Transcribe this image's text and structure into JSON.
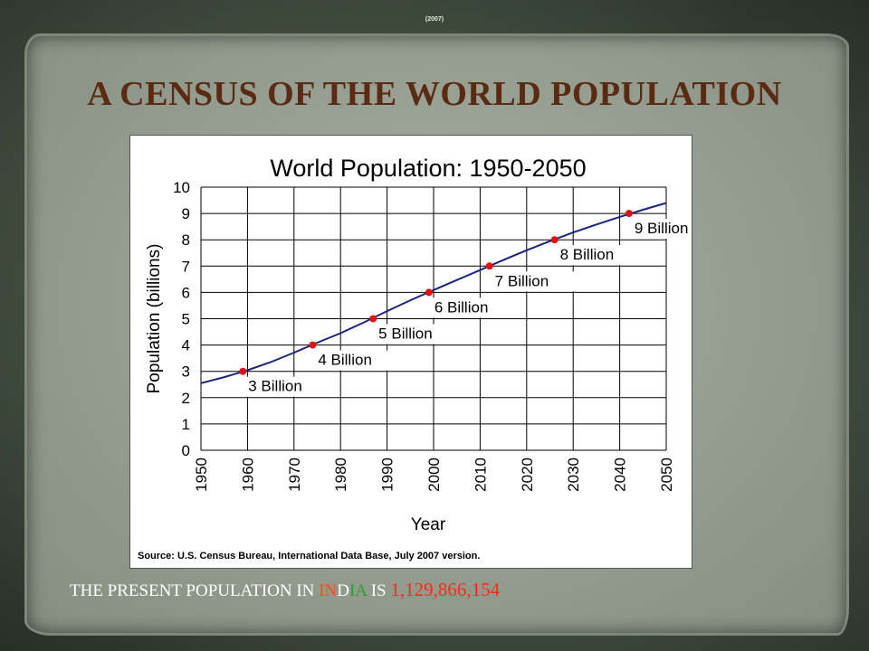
{
  "header": {
    "note_line1": "",
    "note_line2": "(2007)"
  },
  "slide": {
    "title": "A CENSUS OF THE WORLD POPULATION"
  },
  "footer": {
    "prefix": "THE PRESENT POPULATION IN ",
    "country_part1": "IN",
    "country_part2": "D",
    "country_part3": "IA",
    "middle": " IS ",
    "population": "1,129,866,154"
  },
  "colors": {
    "title": "#5a2a12",
    "line": "#1a237e",
    "milestone": "#e01010"
  },
  "chart_data": {
    "type": "line",
    "title": "World Population: 1950-2050",
    "xlabel": "Year",
    "ylabel": "Population (billions)",
    "source": "Source: U.S. Census Bureau, International Data Base, July 2007 version.",
    "xlim": [
      1950,
      2050
    ],
    "ylim": [
      0,
      10
    ],
    "x_ticks": [
      1950,
      1960,
      1970,
      1980,
      1990,
      2000,
      2010,
      2020,
      2030,
      2040,
      2050
    ],
    "y_ticks": [
      0,
      1,
      2,
      3,
      4,
      5,
      6,
      7,
      8,
      9,
      10
    ],
    "grid": true,
    "series": [
      {
        "x": [
          1950,
          1955,
          1960,
          1965,
          1970,
          1975,
          1980,
          1985,
          1990,
          1995,
          2000,
          2005,
          2010,
          2015,
          2020,
          2025,
          2030,
          2035,
          2040,
          2045,
          2050
        ],
        "y": [
          2.55,
          2.78,
          3.04,
          3.35,
          3.71,
          4.09,
          4.45,
          4.86,
          5.29,
          5.7,
          6.09,
          6.47,
          6.85,
          7.23,
          7.6,
          7.95,
          8.28,
          8.58,
          8.87,
          9.14,
          9.4
        ]
      }
    ],
    "milestones": [
      {
        "year": 1959,
        "value": 3,
        "label": "3 Billion"
      },
      {
        "year": 1974,
        "value": 4,
        "label": "4 Billion"
      },
      {
        "year": 1987,
        "value": 5,
        "label": "5 Billion"
      },
      {
        "year": 1999,
        "value": 6,
        "label": "6 Billion"
      },
      {
        "year": 2012,
        "value": 7,
        "label": "7 Billion"
      },
      {
        "year": 2026,
        "value": 8,
        "label": "8 Billion"
      },
      {
        "year": 2042,
        "value": 9,
        "label": "9 Billion"
      }
    ]
  }
}
